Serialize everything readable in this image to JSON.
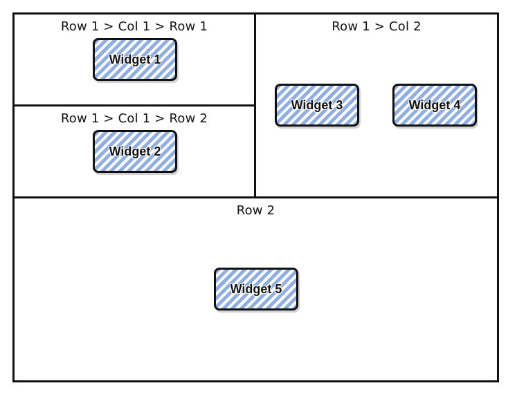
{
  "panels": {
    "row1_col1_row1": {
      "title": "Row 1 > Col 1 > Row 1"
    },
    "row1_col1_row2": {
      "title": "Row 1 > Col 1 > Row 2"
    },
    "row1_col2": {
      "title": "Row 1 > Col 2"
    },
    "row2": {
      "title": "Row 2"
    }
  },
  "widgets": [
    {
      "label": "Widget 1"
    },
    {
      "label": "Widget 2"
    },
    {
      "label": "Widget 3"
    },
    {
      "label": "Widget 4"
    },
    {
      "label": "Widget 5"
    }
  ],
  "colors": {
    "border": "#111111",
    "widget_hatch": "#8faee3",
    "background": "#ffffff"
  }
}
